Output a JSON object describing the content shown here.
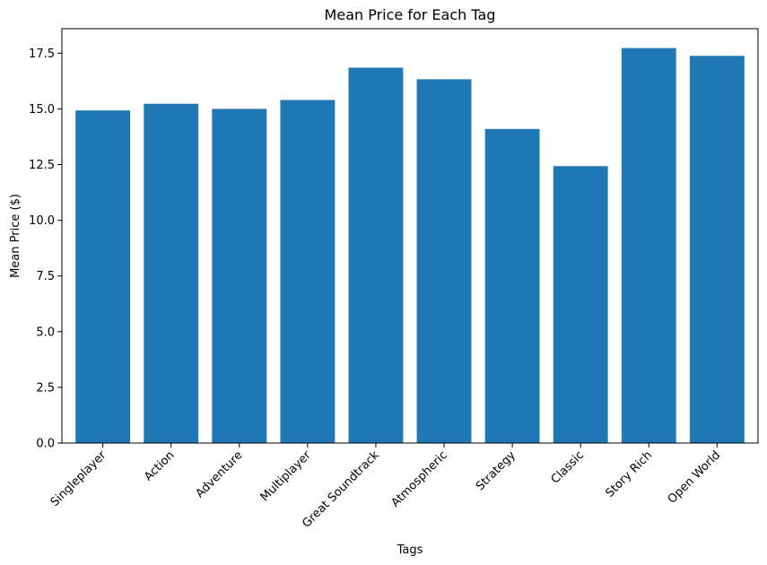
{
  "chart_data": {
    "type": "bar",
    "title": "Mean Price for Each Tag",
    "xlabel": "Tags",
    "ylabel": "Mean Price ($)",
    "categories": [
      "Singleplayer",
      "Action",
      "Adventure",
      "Multiplayer",
      "Great Soundtrack",
      "Atmospheric",
      "Strategy",
      "Classic",
      "Story Rich",
      "Open World"
    ],
    "values": [
      14.93,
      15.23,
      15.0,
      15.4,
      16.85,
      16.33,
      14.1,
      12.43,
      17.73,
      17.38
    ],
    "ylim": [
      0,
      18.6
    ],
    "yticks": [
      0.0,
      2.5,
      5.0,
      7.5,
      10.0,
      12.5,
      15.0,
      17.5
    ],
    "ytick_labels": [
      "0.0",
      "2.5",
      "5.0",
      "7.5",
      "10.0",
      "12.5",
      "15.0",
      "17.5"
    ],
    "grid": false,
    "bar_color": "#1f77b4"
  }
}
